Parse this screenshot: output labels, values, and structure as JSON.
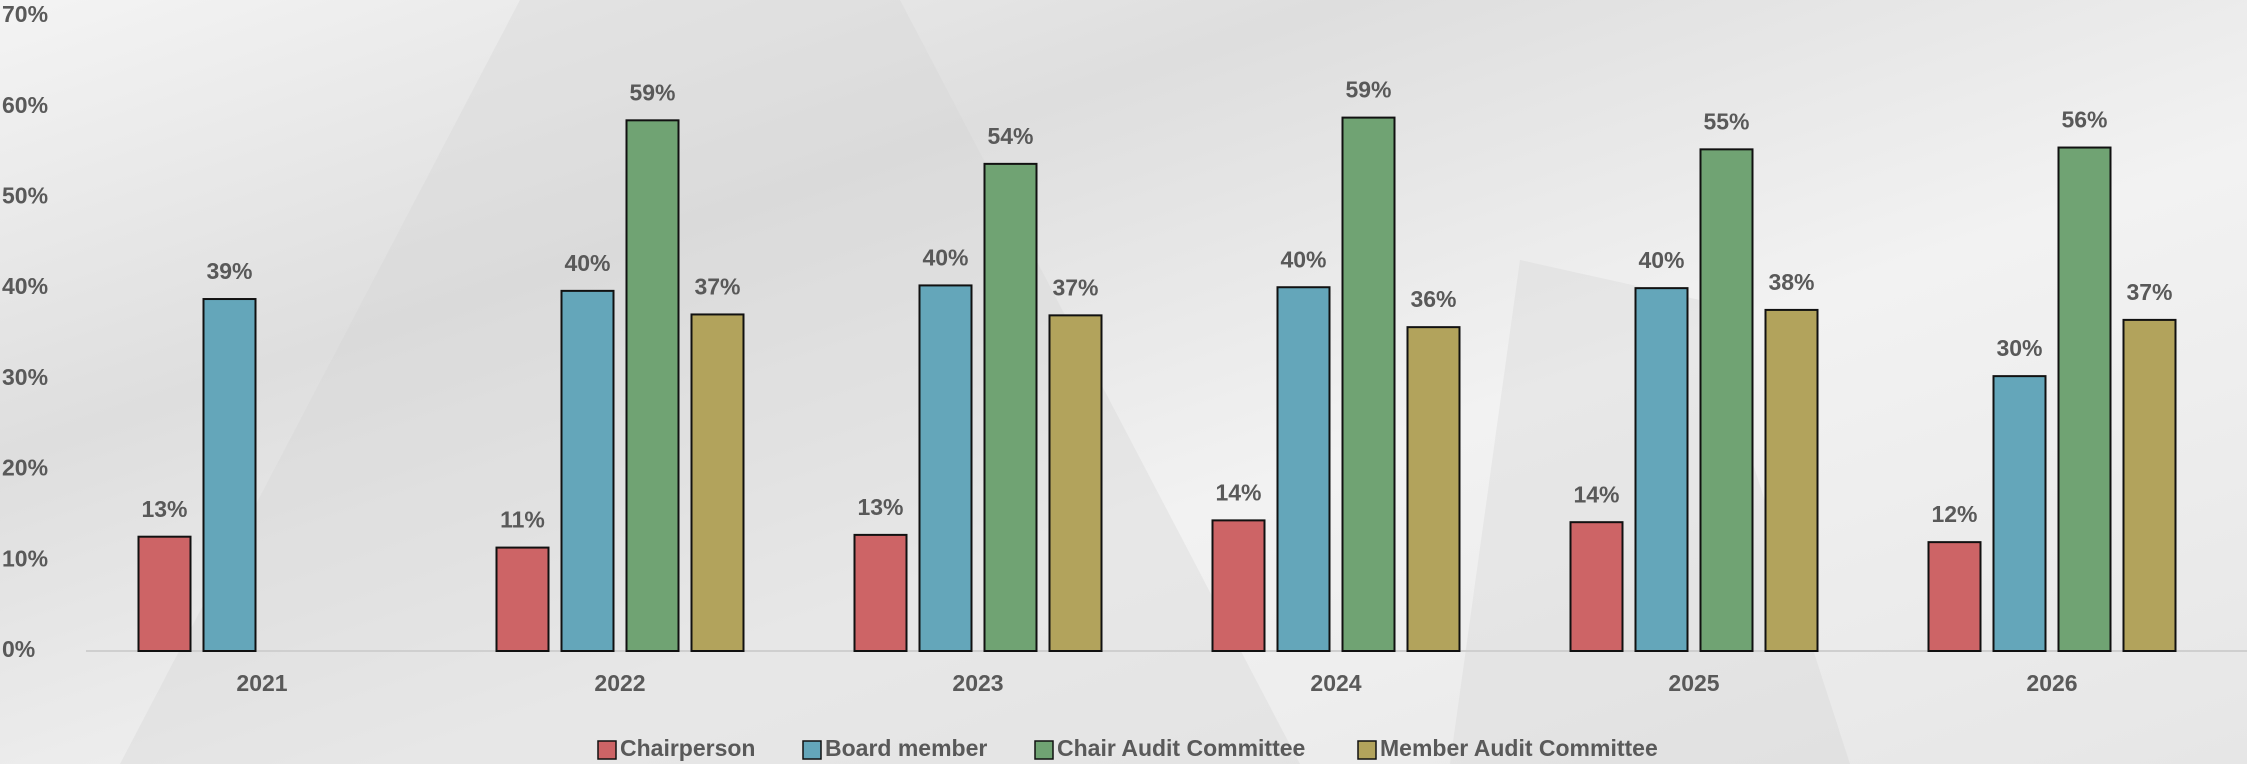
{
  "chart_data": {
    "type": "bar",
    "categories": [
      "2021",
      "2022",
      "2023",
      "2024",
      "2025",
      "2026"
    ],
    "series": [
      {
        "name": "Chairperson",
        "color": "#cd6466",
        "values": [
          12.6,
          11.4,
          12.8,
          14.4,
          14.2,
          12.0
        ],
        "value_labels": [
          "13%",
          "11%",
          "13%",
          "14%",
          "14%",
          "12%"
        ]
      },
      {
        "name": "Board member",
        "color": "#64a6ba",
        "values": [
          38.8,
          39.7,
          40.3,
          40.1,
          40.0,
          30.3
        ],
        "value_labels": [
          "39%",
          "40%",
          "40%",
          "40%",
          "40%",
          "30%"
        ]
      },
      {
        "name": "Chair Audit Committee",
        "color": "#70a373",
        "values": [
          null,
          58.5,
          53.7,
          58.8,
          55.3,
          55.5
        ],
        "value_labels": [
          null,
          "59%",
          "54%",
          "59%",
          "55%",
          "56%"
        ]
      },
      {
        "name": "Member Audit Committee",
        "color": "#b2a35c",
        "values": [
          null,
          37.1,
          37.0,
          35.7,
          37.6,
          36.5
        ],
        "value_labels": [
          null,
          "37%",
          "37%",
          "36%",
          "38%",
          "37%"
        ]
      }
    ],
    "ylim": [
      0,
      70
    ],
    "yticks": [
      {
        "value": 0,
        "label": "0%"
      },
      {
        "value": 10,
        "label": "10%"
      },
      {
        "value": 20,
        "label": "20%"
      },
      {
        "value": 30,
        "label": "30%"
      },
      {
        "value": 40,
        "label": "40%"
      },
      {
        "value": 50,
        "label": "50%"
      },
      {
        "value": 60,
        "label": "60%"
      },
      {
        "value": 70,
        "label": "70%"
      }
    ],
    "grid": false,
    "legend": "bottom"
  }
}
